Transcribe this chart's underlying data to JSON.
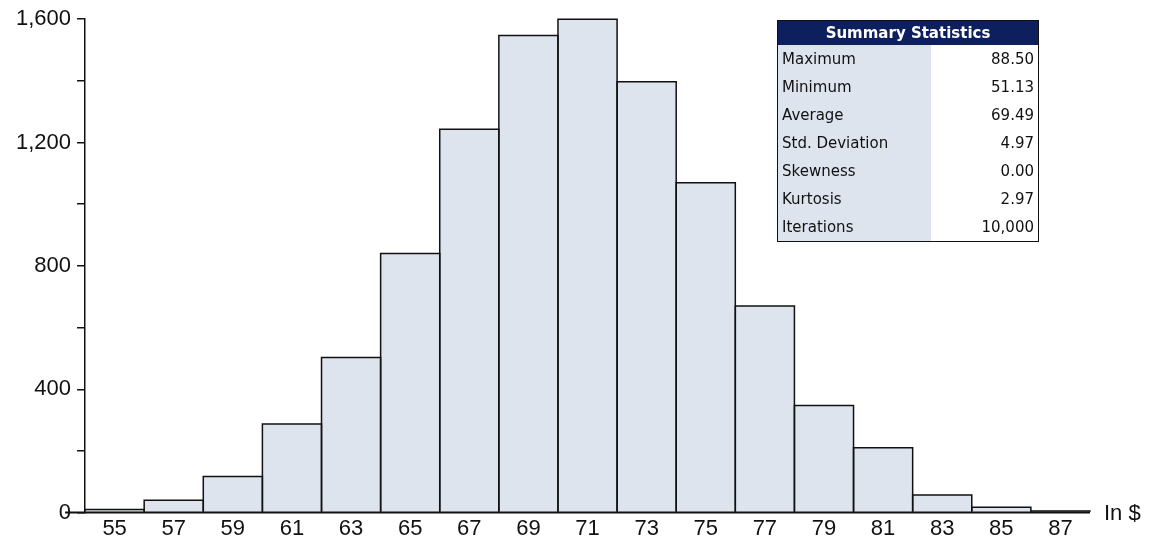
{
  "chart_data": {
    "type": "histogram",
    "xlabel": "In $",
    "bins": [
      54,
      56,
      58,
      60,
      62,
      64,
      66,
      68,
      70,
      72,
      74,
      76,
      78,
      80,
      82,
      84,
      86,
      88
    ],
    "values": [
      10,
      40,
      117,
      287,
      503,
      840,
      1243,
      1547,
      1600,
      1397,
      1070,
      670,
      347,
      210,
      57,
      17,
      5
    ],
    "color": "#dde4ee",
    "xlim": [
      54,
      88
    ],
    "xticks": [
      55,
      57,
      59,
      61,
      63,
      65,
      67,
      69,
      71,
      73,
      75,
      77,
      79,
      81,
      83,
      85,
      87
    ],
    "ylim": [
      0,
      1600
    ],
    "yticks": [
      0,
      {
        "value": 200,
        "label": null
      },
      400,
      {
        "value": 600,
        "label": null
      },
      800,
      {
        "value": 1000,
        "label": null
      },
      {
        "value": 1200,
        "label": "1,200"
      },
      {
        "value": 1400,
        "label": null
      },
      {
        "value": 1600,
        "label": "1,600"
      }
    ],
    "grid": false,
    "legend": false,
    "annotations": [
      "Summary Statistics",
      "Maximum",
      "88.50",
      "Minimum",
      "51.13",
      "Average",
      "69.49",
      "Std. Deviation",
      "4.97",
      "Skewness",
      "0.00",
      "Kurtosis",
      "2.97",
      "Iterations",
      "10,000"
    ]
  }
}
